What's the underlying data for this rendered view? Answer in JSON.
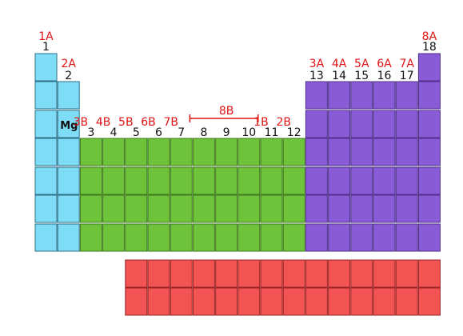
{
  "colors": {
    "s_block": "#7fdcf7",
    "s_block_stroke": "#2b6e86",
    "d_block": "#6ec33a",
    "d_block_stroke": "#3f7a1e",
    "p_block": "#8a5bd6",
    "p_block_stroke": "#4d2f85",
    "f_block": "#f25454",
    "f_block_stroke": "#9b2222",
    "label_red": "#e01414",
    "label_black": "#111111"
  },
  "element_label": "Mg",
  "group_labels": {
    "roman": [
      "1A",
      "2A",
      "3B",
      "4B",
      "5B",
      "6B",
      "7B",
      "1B",
      "2B",
      "3A",
      "4A",
      "5A",
      "6A",
      "7A",
      "8A"
    ],
    "group_8b": "8B",
    "numbers": [
      "1",
      "2",
      "3",
      "4",
      "5",
      "6",
      "7",
      "8",
      "9",
      "10",
      "11",
      "12",
      "13",
      "14",
      "15",
      "16",
      "17",
      "18"
    ]
  }
}
